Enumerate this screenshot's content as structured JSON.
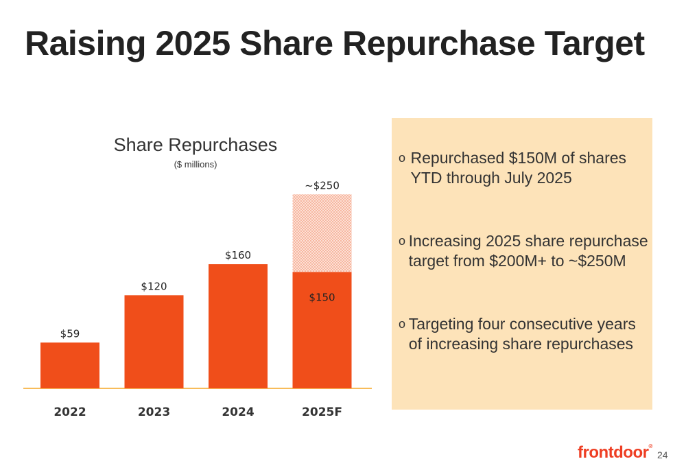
{
  "slide": {
    "title": "Raising 2025 Share Repurchase Target",
    "page_number": "24",
    "logo_text": "frontdoor"
  },
  "chart_data": {
    "type": "bar",
    "title": "Share Repurchases",
    "subtitle": "($ millions)",
    "categories": [
      "2022",
      "2023",
      "2024",
      "2025F"
    ],
    "series": [
      {
        "values": [
          59,
          120,
          160,
          150
        ],
        "color": "#f04e1a"
      },
      {
        "values": [
          0,
          0,
          0,
          100
        ],
        "color": "#f5a88c",
        "pattern": "dotted"
      }
    ],
    "total_labels": [
      "$59",
      "$120",
      "$160",
      "~$250"
    ],
    "inner_label": {
      "category": "2025F",
      "text": "$150"
    },
    "ylim": [
      0,
      260
    ],
    "axis_color": "#f5a623",
    "xlabel": "",
    "ylabel": ""
  },
  "panel": {
    "background": "#fde3b9",
    "bullets": [
      {
        "marker": "o",
        "text": "Repurchased $150M of shares YTD through July 2025"
      },
      {
        "marker": "o",
        "text": "Increasing 2025 share repurchase target from $200M+ to ~$250M"
      },
      {
        "marker": "o",
        "text": "Targeting four consecutive years of increasing share repurchases"
      }
    ]
  }
}
